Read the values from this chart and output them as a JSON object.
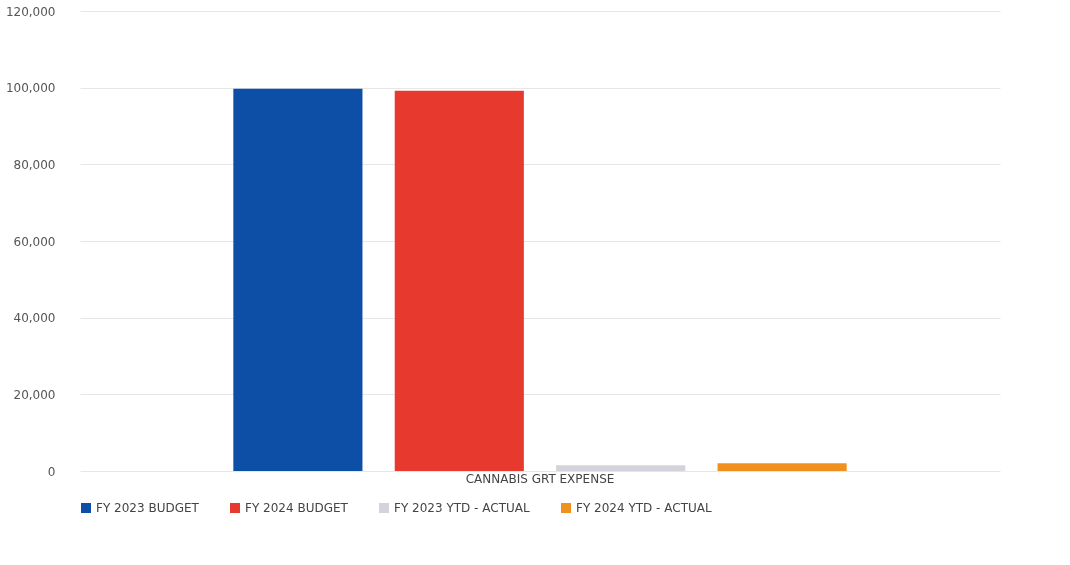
{
  "chart_data": {
    "type": "bar",
    "categories": [
      "CANNABIS GRT EXPENSE"
    ],
    "series": [
      {
        "name": "FY 2023 BUDGET",
        "color": "#0d4fa6",
        "values": [
          99700
        ]
      },
      {
        "name": "FY 2024 BUDGET",
        "color": "#e8392e",
        "values": [
          99200
        ]
      },
      {
        "name": "FY 2023 YTD - ACTUAL",
        "color": "#d3d3dc",
        "values": [
          1500
        ]
      },
      {
        "name": "FY 2024 YTD - ACTUAL",
        "color": "#f0901e",
        "values": [
          2000
        ]
      }
    ],
    "ylim": [
      0,
      120000
    ],
    "yticks": [
      0,
      {
        "value": 20000,
        "label": "20,000"
      },
      {
        "value": 40000,
        "label": "40,000"
      },
      {
        "value": 60000,
        "label": "60,000"
      },
      {
        "value": 80000,
        "label": "80,000"
      },
      {
        "value": 100000,
        "label": "100,000"
      },
      {
        "value": 120000,
        "label": "120,000"
      }
    ],
    "grid": "y",
    "legend": "bottom"
  }
}
